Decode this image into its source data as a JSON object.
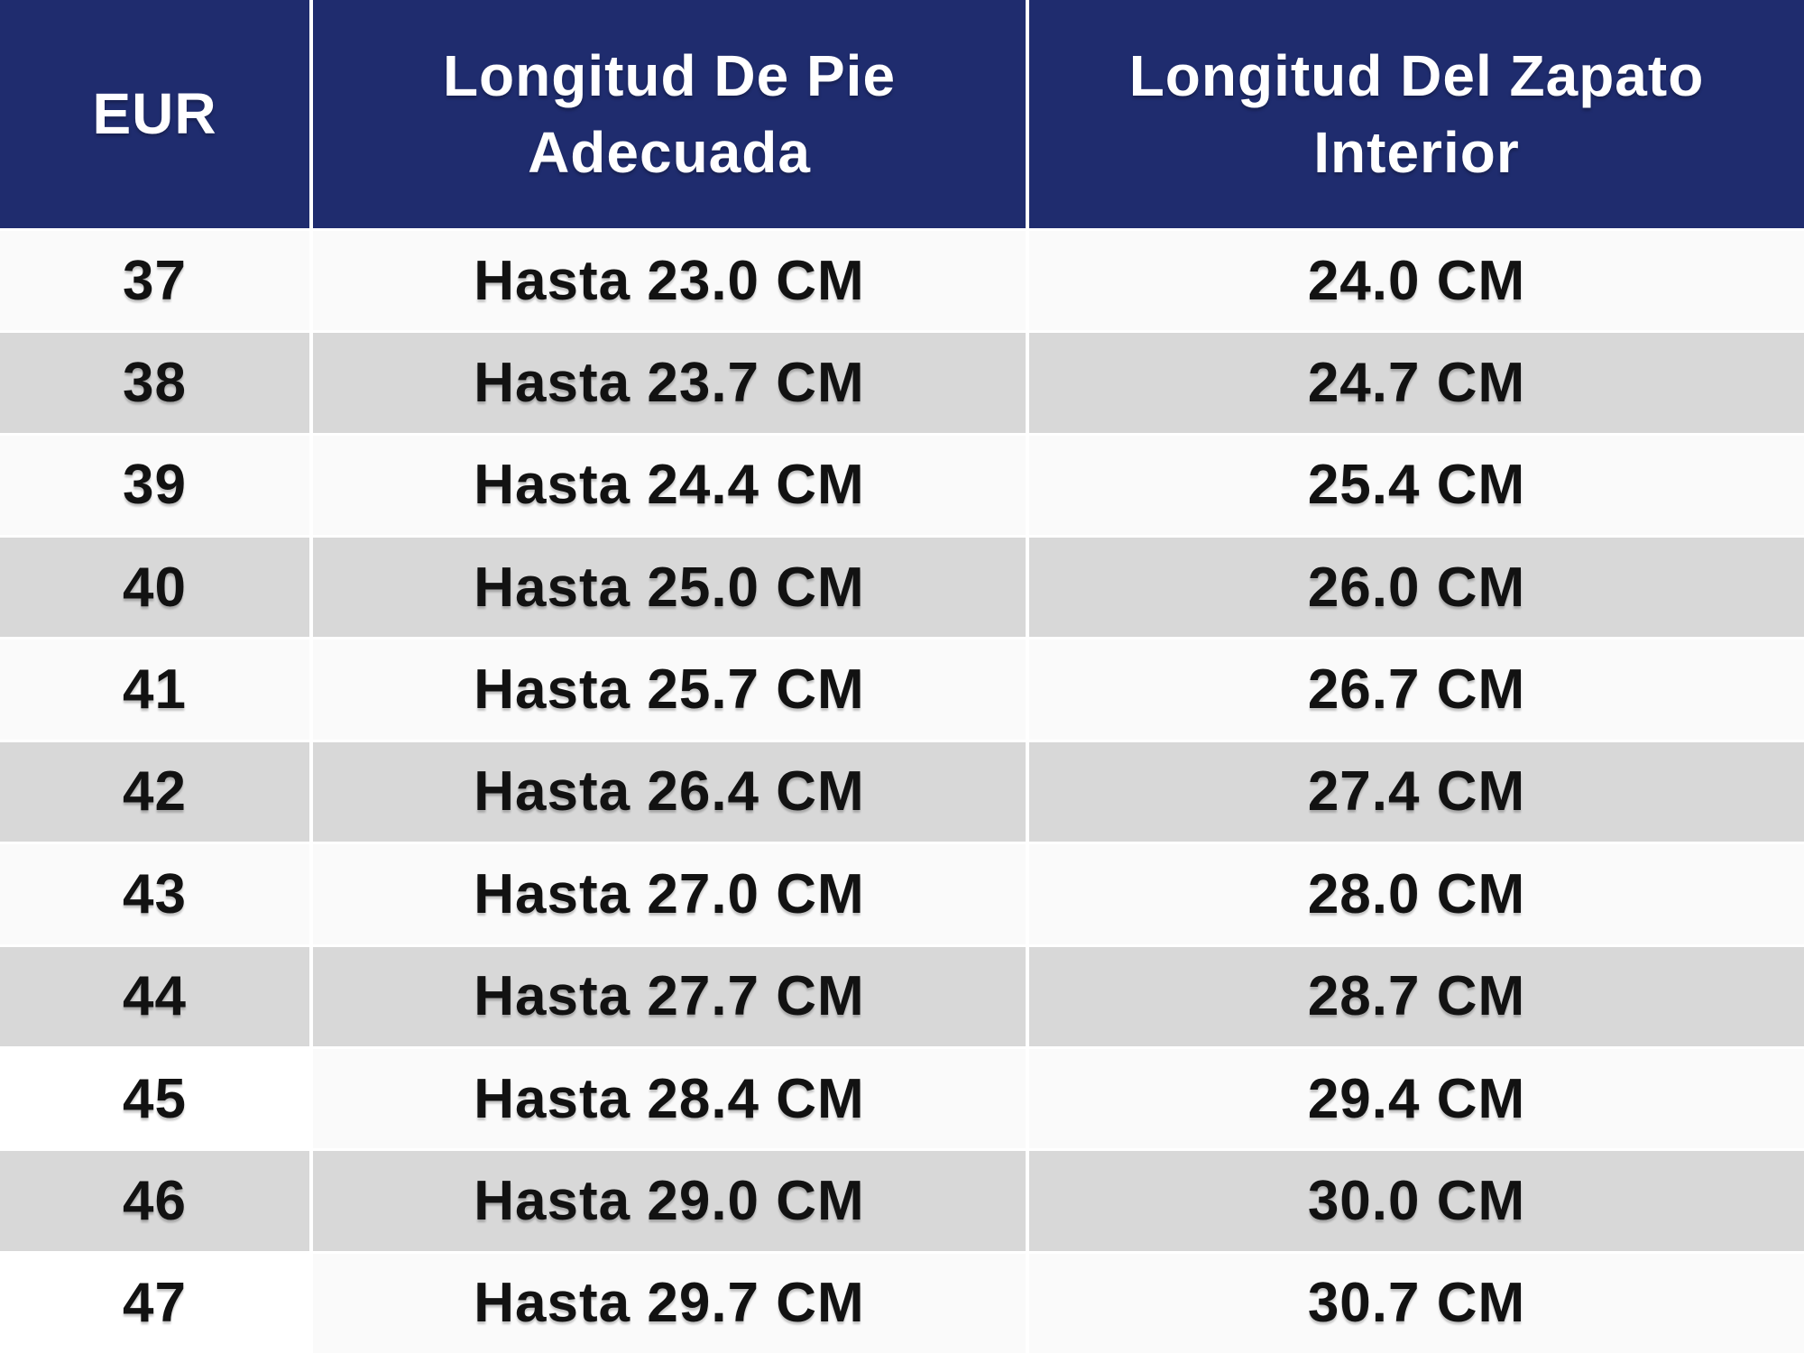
{
  "table": {
    "columns": [
      {
        "label": "EUR"
      },
      {
        "label": "Longitud De Pie Adecuada"
      },
      {
        "label": "Longitud Del Zapato Interior"
      }
    ],
    "rows": [
      {
        "eur": "37",
        "foot_length": "Hasta 23.0 CM",
        "inner_length": "24.0 CM"
      },
      {
        "eur": "38",
        "foot_length": "Hasta 23.7 CM",
        "inner_length": "24.7 CM"
      },
      {
        "eur": "39",
        "foot_length": "Hasta 24.4 CM",
        "inner_length": "25.4 CM"
      },
      {
        "eur": "40",
        "foot_length": "Hasta 25.0 CM",
        "inner_length": "26.0 CM"
      },
      {
        "eur": "41",
        "foot_length": "Hasta 25.7 CM",
        "inner_length": "26.7 CM"
      },
      {
        "eur": "42",
        "foot_length": "Hasta 26.4 CM",
        "inner_length": "27.4 CM"
      },
      {
        "eur": "43",
        "foot_length": "Hasta 27.0 CM",
        "inner_length": "28.0 CM"
      },
      {
        "eur": "44",
        "foot_length": "Hasta 27.7 CM",
        "inner_length": "28.7 CM"
      },
      {
        "eur": "45",
        "foot_length": "Hasta 28.4 CM",
        "inner_length": "29.4 CM"
      },
      {
        "eur": "46",
        "foot_length": "Hasta 29.0 CM",
        "inner_length": "30.0 CM"
      },
      {
        "eur": "47",
        "foot_length": "Hasta 29.7 CM",
        "inner_length": "30.7 CM"
      }
    ]
  },
  "theme": {
    "header_bg": "#1f2c6e",
    "header_text": "#ffffff",
    "row_light": "#fafafa",
    "row_alt": "#d8d8d8",
    "row_white_col1": "#ffffff",
    "body_text": "#121212",
    "divider": "#ffffff"
  }
}
